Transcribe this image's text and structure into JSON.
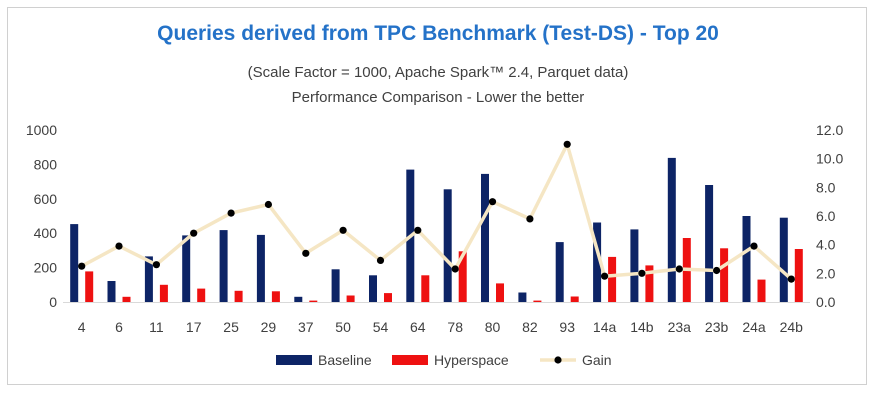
{
  "chart_data": {
    "type": "bar",
    "title": "Queries derived from TPC Benchmark (Test-DS) - Top 20",
    "subtitle": "(Scale Factor = 1000, Apache Spark™ 2.4, Parquet data)",
    "subtitle2": "Performance Comparison - Lower the better",
    "categories": [
      "4",
      "6",
      "11",
      "17",
      "25",
      "29",
      "37",
      "50",
      "54",
      "64",
      "78",
      "80",
      "82",
      "93",
      "14a",
      "14b",
      "23a",
      "23b",
      "24a",
      "24b"
    ],
    "series": [
      {
        "name": "Baseline",
        "type": "bar",
        "axis": "left",
        "color": "#0d2466",
        "values": [
          453,
          122,
          265,
          387,
          418,
          390,
          30,
          190,
          155,
          770,
          655,
          745,
          55,
          348,
          462,
          422,
          838,
          680,
          500,
          490
        ]
      },
      {
        "name": "Hyperspace",
        "type": "bar",
        "axis": "left",
        "color": "#ee1111",
        "values": [
          178,
          30,
          100,
          78,
          65,
          62,
          8,
          38,
          52,
          155,
          295,
          108,
          8,
          32,
          262,
          213,
          372,
          312,
          130,
          308
        ]
      },
      {
        "name": "Gain",
        "type": "line",
        "axis": "right",
        "color": "#f5e6c4",
        "values": [
          2.5,
          3.9,
          2.6,
          4.8,
          6.2,
          6.8,
          3.4,
          5.0,
          2.9,
          5.0,
          2.3,
          7.0,
          5.8,
          11.0,
          1.8,
          2.0,
          2.3,
          2.2,
          3.9,
          1.6
        ]
      }
    ],
    "y_left": {
      "min": 0,
      "max": 1000,
      "ticks": [
        "0",
        "200",
        "400",
        "600",
        "800",
        "1000"
      ]
    },
    "y_right": {
      "min": 0,
      "max": 12,
      "ticks": [
        "0.0",
        "2.0",
        "4.0",
        "6.0",
        "8.0",
        "10.0",
        "12.0"
      ]
    },
    "legend": {
      "position": "bottom",
      "items": [
        "Baseline",
        "Hyperspace",
        "Gain"
      ]
    }
  }
}
